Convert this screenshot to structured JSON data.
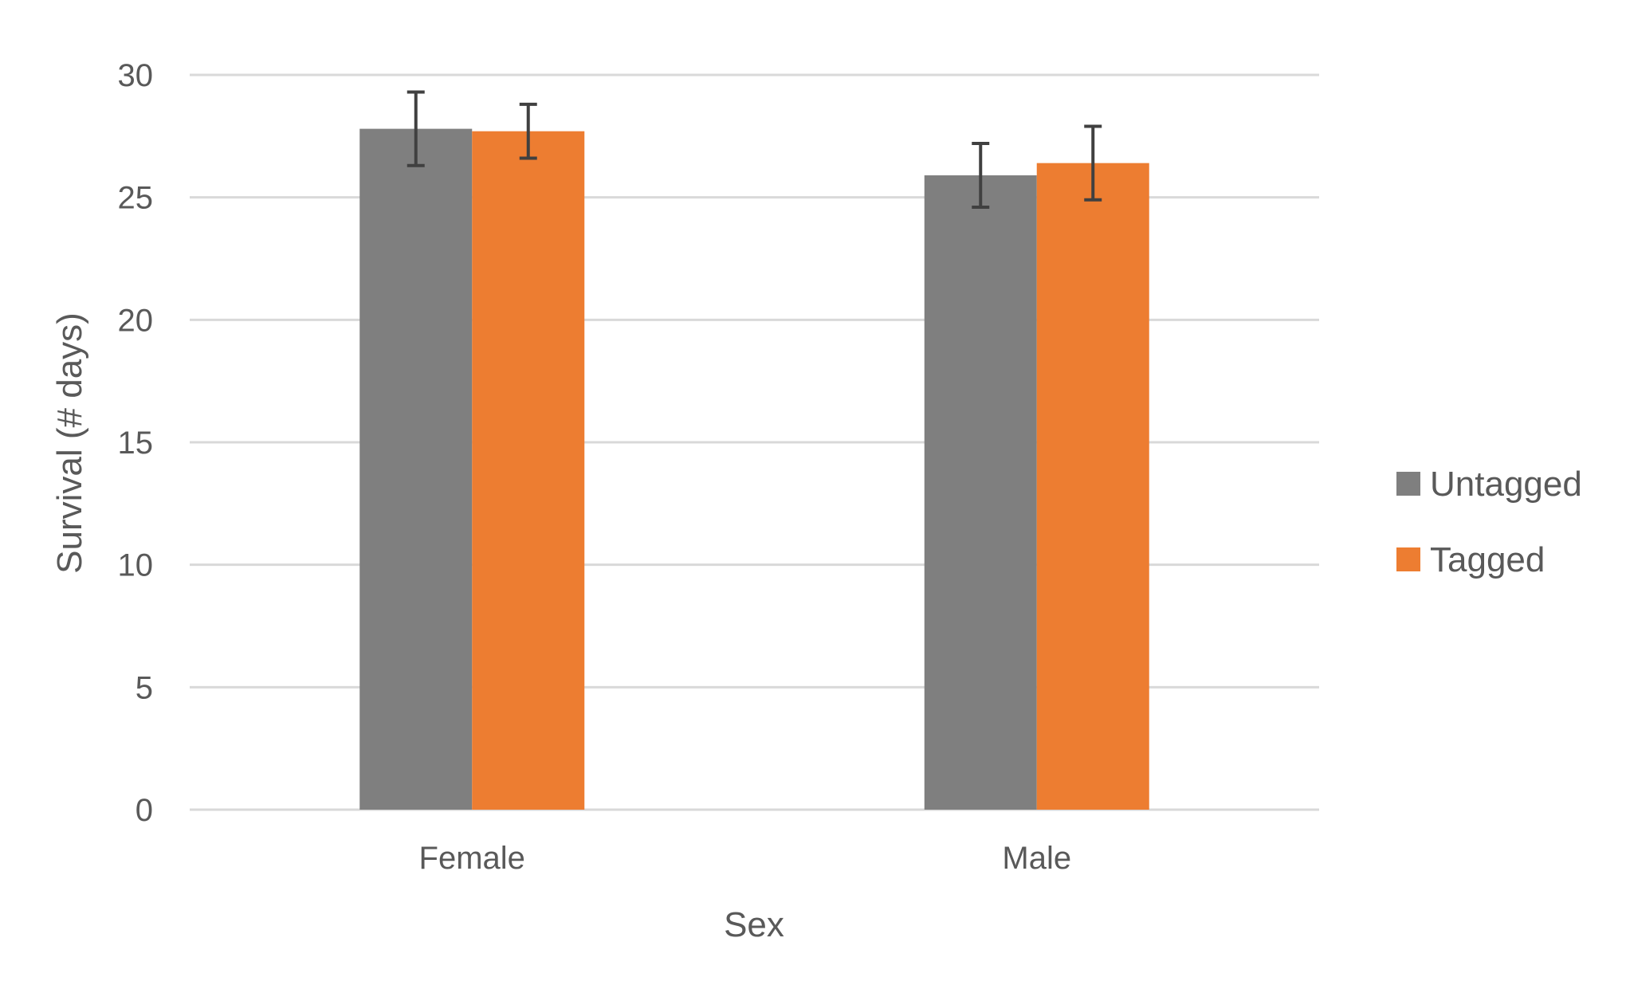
{
  "chart_data": {
    "type": "bar",
    "title": "",
    "xlabel": "Sex",
    "ylabel": "Survival (# days)",
    "categories": [
      "Female",
      "Male"
    ],
    "ylim": [
      0,
      30
    ],
    "yticks": [
      0,
      5,
      10,
      15,
      20,
      25,
      30
    ],
    "grid": true,
    "legend_position": "right",
    "series": [
      {
        "name": "Untagged",
        "color": "#7f7f7f",
        "values": [
          27.8,
          25.9
        ],
        "errors": [
          1.5,
          1.3
        ]
      },
      {
        "name": "Tagged",
        "color": "#ed7d31",
        "values": [
          27.7,
          26.4
        ],
        "errors": [
          1.1,
          1.5
        ]
      }
    ],
    "colors": {
      "gridline": "#d9d9d9",
      "errorbar": "#404040",
      "text": "#595959"
    }
  }
}
